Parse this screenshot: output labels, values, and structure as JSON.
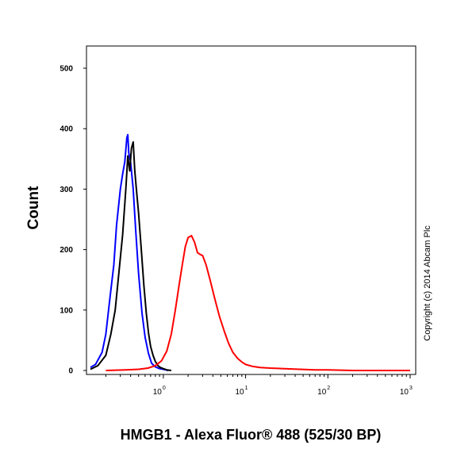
{
  "chart_data": {
    "type": "line",
    "xlabel": "HMGB1 - Alexa Fluor® 488 (525/30 BP)",
    "ylabel": "Count",
    "x_scale": "log",
    "xlim": [
      0.13,
      1000
    ],
    "ylim": [
      0,
      540
    ],
    "y_ticks": [
      0,
      100,
      200,
      300,
      400,
      500
    ],
    "x_ticks": [
      {
        "value": 1,
        "base": "10",
        "exp": "0"
      },
      {
        "value": 10,
        "base": "10",
        "exp": "1"
      },
      {
        "value": 100,
        "base": "10",
        "exp": "2"
      },
      {
        "value": 1000,
        "base": "10",
        "exp": "3"
      }
    ],
    "annotation": "Copyright (c) 2014 Abcam Plc",
    "series": [
      {
        "color": "#0000ff",
        "x": [
          0.13,
          0.15,
          0.18,
          0.2,
          0.22,
          0.25,
          0.27,
          0.3,
          0.32,
          0.34,
          0.36,
          0.37,
          0.38,
          0.4,
          0.43,
          0.46,
          0.5,
          0.55,
          0.6,
          0.66,
          0.72,
          0.8,
          0.9,
          1.0,
          1.15
        ],
        "y": [
          5,
          10,
          30,
          60,
          110,
          175,
          240,
          300,
          325,
          345,
          385,
          390,
          360,
          345,
          300,
          235,
          160,
          95,
          55,
          28,
          12,
          6,
          3,
          2,
          0
        ]
      },
      {
        "color": "#000000",
        "x": [
          0.13,
          0.16,
          0.2,
          0.23,
          0.26,
          0.29,
          0.32,
          0.35,
          0.37,
          0.39,
          0.41,
          0.43,
          0.45,
          0.47,
          0.5,
          0.54,
          0.58,
          0.62,
          0.66,
          0.7,
          0.75,
          0.8,
          0.86,
          0.92,
          1.0,
          1.1,
          1.25
        ],
        "y": [
          2,
          8,
          25,
          60,
          100,
          165,
          225,
          300,
          355,
          330,
          368,
          378,
          330,
          300,
          260,
          200,
          140,
          95,
          62,
          40,
          25,
          15,
          8,
          5,
          3,
          1,
          0
        ]
      },
      {
        "color": "#ff0000",
        "x": [
          0.2,
          0.35,
          0.5,
          0.65,
          0.8,
          0.95,
          1.1,
          1.25,
          1.4,
          1.55,
          1.7,
          1.85,
          2.0,
          2.2,
          2.4,
          2.6,
          2.8,
          3.0,
          3.3,
          3.7,
          4.2,
          4.8,
          5.5,
          6.2,
          7.0,
          8.0,
          9.0,
          10.0,
          12.0,
          15.0,
          20.0,
          30.0,
          45.0,
          70.0,
          100.0,
          200.0,
          400.0,
          1000.0
        ],
        "y": [
          0,
          1,
          2,
          4,
          8,
          16,
          32,
          60,
          100,
          140,
          175,
          205,
          220,
          223,
          212,
          195,
          192,
          190,
          175,
          150,
          120,
          90,
          65,
          45,
          30,
          20,
          14,
          10,
          7,
          5,
          4,
          3,
          2,
          1,
          1,
          0,
          0,
          0
        ]
      }
    ]
  }
}
